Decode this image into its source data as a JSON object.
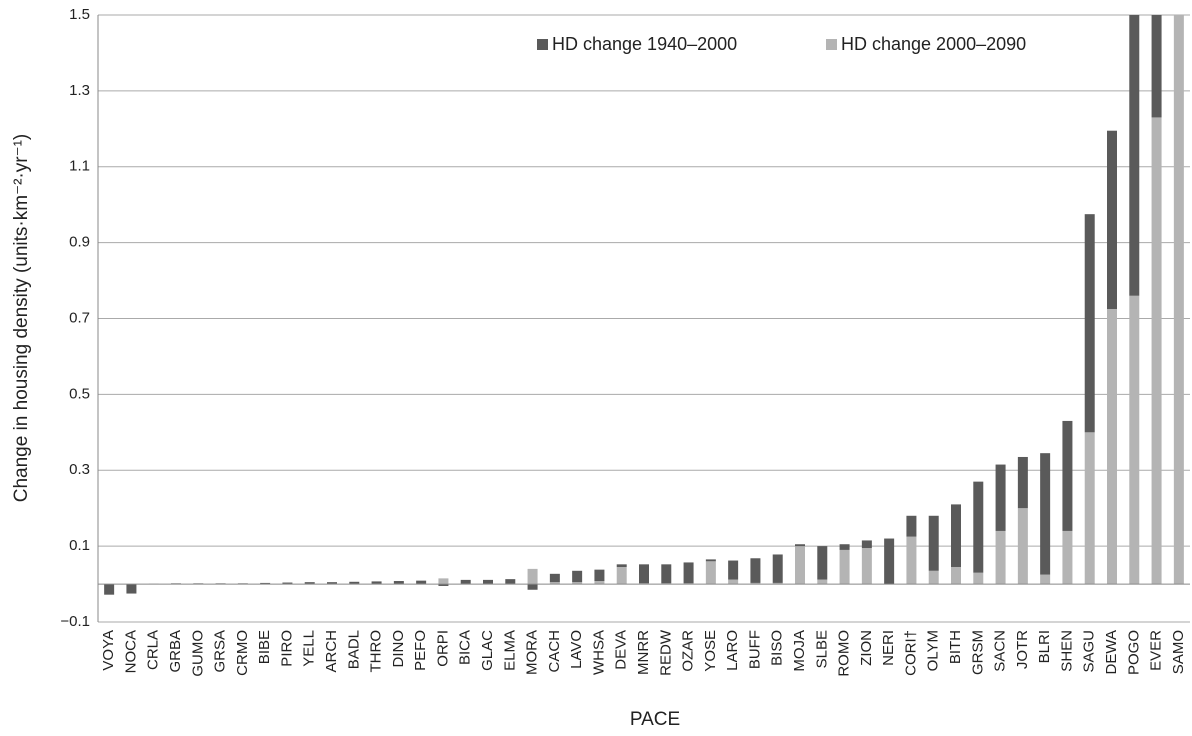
{
  "chart_data": {
    "type": "stacked-bar",
    "x_label": "PACE",
    "y_label": "Change in housing density (units·km⁻²·yr⁻¹)",
    "categories": [
      "VOYA",
      "NOCA",
      "CRLA",
      "GRBA",
      "GUMO",
      "GRSA",
      "CRMO",
      "BIBE",
      "PIRO",
      "YELL",
      "ARCH",
      "BADL",
      "THRO",
      "DINO",
      "PEFO",
      "ORPI",
      "BICA",
      "GLAC",
      "ELMA",
      "MORA",
      "CACH",
      "LAVO",
      "WHSA",
      "DEVA",
      "MNRR",
      "REDW",
      "OZAR",
      "YOSE",
      "LARO",
      "BUFF",
      "BISO",
      "MOJA",
      "SLBE",
      "ROMO",
      "ZION",
      "NERI",
      "CORI†",
      "OLYM",
      "BITH",
      "GRSM",
      "SACN",
      "JOTR",
      "BLRI",
      "SHEN",
      "SAGU",
      "DEWA",
      "POGO",
      "EVER",
      "SAMO"
    ],
    "series": [
      {
        "name": "HD change 2000–2090",
        "color": "#b4b4b4",
        "values": [
          0,
          0,
          0.001,
          0.001,
          0.001,
          0.001,
          0.001,
          0.001,
          0.001,
          0.001,
          0.001,
          0.001,
          0.001,
          0.001,
          0.001,
          0.015,
          0.001,
          0.001,
          0.001,
          0.04,
          0.005,
          0.005,
          0.008,
          0.045,
          0.002,
          0.002,
          0.002,
          0.06,
          0.012,
          0.003,
          0.003,
          0.1,
          0.012,
          0.09,
          0.095,
          0,
          0.125,
          0.035,
          0.045,
          0.03,
          0.14,
          0.2,
          0.025,
          0.14,
          0.4,
          0.725,
          0.76,
          1.23,
          1.5
        ]
      },
      {
        "name": "HD change 1940–2000",
        "color": "#5a5a5a",
        "values": [
          -0.028,
          -0.025,
          0,
          0.001,
          0.001,
          0.001,
          0.001,
          0.002,
          0.003,
          0.004,
          0.004,
          0.005,
          0.006,
          0.007,
          0.008,
          -0.005,
          0.01,
          0.01,
          0.012,
          -0.015,
          0.022,
          0.03,
          0.03,
          0.007,
          0.05,
          0.05,
          0.055,
          0.005,
          0.05,
          0.065,
          0.075,
          0.005,
          0.088,
          0.015,
          0.02,
          0.12,
          0.055,
          0.145,
          0.165,
          0.24,
          0.175,
          0.135,
          0.32,
          0.29,
          0.575,
          0.47,
          0.74,
          0.27,
          0
        ]
      }
    ],
    "ylim": [
      -0.1,
      1.5
    ],
    "yticks": [
      {
        "value": -0.1,
        "label": "−0.1"
      },
      0.1,
      0.3,
      0.5,
      0.7,
      0.9,
      1.1,
      1.3,
      1.5
    ],
    "grid": true,
    "legend": "top"
  }
}
